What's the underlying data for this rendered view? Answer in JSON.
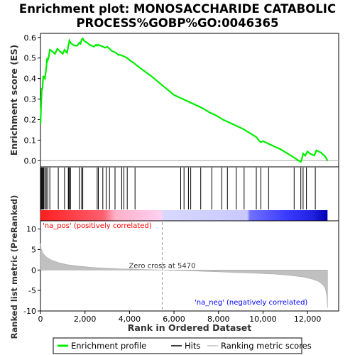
{
  "chart_data": {
    "type": "line",
    "title_line1": "Enrichment plot: MONOSACCHARIDE CATABOLIC",
    "title_line2": "PROCESS%GOBP%GO:0046365",
    "top_panel": {
      "ylabel": "Enrichment score (ES)",
      "ylim": [
        -0.03,
        0.62
      ],
      "yticks": [
        0.0,
        0.1,
        0.2,
        0.3,
        0.4,
        0.5,
        0.6
      ],
      "ytick_labels": [
        "0.0",
        "0.1",
        "0.2",
        "0.3",
        "0.4",
        "0.5",
        "0.6"
      ],
      "series_name": "Enrichment profile",
      "line_color": "#00ee00",
      "x": [
        0,
        30,
        60,
        90,
        120,
        150,
        200,
        260,
        300,
        330,
        380,
        420,
        500,
        650,
        760,
        800,
        850,
        900,
        1000,
        1080,
        1150,
        1200,
        1250,
        1280,
        1300,
        1350,
        1450,
        1550,
        1650,
        1750,
        1800,
        1850,
        1900,
        1950,
        2000,
        2100,
        2200,
        2300,
        2400,
        2500,
        2550,
        2600,
        2700,
        2800,
        2900,
        3000,
        3100,
        3200,
        3300,
        3400,
        3500,
        3600,
        3700,
        3800,
        3900,
        4000,
        4200,
        4500,
        5000,
        5500,
        6000,
        6300,
        6500,
        6800,
        7000,
        7300,
        7600,
        7900,
        8200,
        8500,
        8800,
        9100,
        9400,
        9700,
        9800,
        9900,
        10000,
        10200,
        10300,
        10500,
        10800,
        11100,
        11400,
        11600,
        11700,
        11750,
        11800,
        11900,
        12000,
        12100,
        12200,
        12300,
        12400,
        12600,
        12800,
        12900
      ],
      "y": [
        0.18,
        0.27,
        0.35,
        0.35,
        0.41,
        0.41,
        0.4,
        0.45,
        0.5,
        0.49,
        0.51,
        0.54,
        0.535,
        0.52,
        0.545,
        0.54,
        0.535,
        0.53,
        0.52,
        0.54,
        0.53,
        0.525,
        0.56,
        0.57,
        0.585,
        0.575,
        0.565,
        0.56,
        0.56,
        0.575,
        0.57,
        0.59,
        0.595,
        0.585,
        0.58,
        0.575,
        0.565,
        0.56,
        0.555,
        0.565,
        0.56,
        0.565,
        0.56,
        0.555,
        0.55,
        0.555,
        0.545,
        0.535,
        0.53,
        0.525,
        0.515,
        0.515,
        0.51,
        0.505,
        0.5,
        0.49,
        0.475,
        0.45,
        0.41,
        0.365,
        0.32,
        0.305,
        0.295,
        0.28,
        0.27,
        0.255,
        0.235,
        0.22,
        0.2,
        0.185,
        0.17,
        0.155,
        0.135,
        0.115,
        0.1,
        0.09,
        0.095,
        0.085,
        0.08,
        0.07,
        0.055,
        0.035,
        0.015,
        0.0,
        -0.005,
        0.01,
        0.035,
        0.025,
        0.045,
        0.035,
        0.03,
        0.025,
        0.05,
        0.04,
        0.02,
        0.0
      ]
    },
    "hits": [
      30,
      60,
      90,
      120,
      150,
      200,
      260,
      330,
      420,
      800,
      1080,
      1250,
      1280,
      1300,
      1350,
      1750,
      1850,
      1900,
      2550,
      2600,
      2800,
      2950,
      3100,
      3350,
      3650,
      3750,
      3900,
      4250,
      6300,
      6450,
      6650,
      6750,
      7200,
      7700,
      8150,
      8400,
      8800,
      9150,
      9700,
      9900,
      10250,
      11400,
      11700,
      11800,
      11950,
      12350
    ],
    "hits_label": "Hits",
    "ranked_panel": {
      "ylabel": "Ranked list metric (PreRanked)",
      "ylim": [
        -10,
        12
      ],
      "yticks": [
        -10,
        -5,
        0,
        5,
        10
      ],
      "ytick_labels": [
        "-10",
        "-5",
        "0",
        "5",
        "10"
      ],
      "series_name": "Ranking metric scores",
      "x": [
        0,
        40,
        100,
        200,
        300,
        500,
        800,
        1200,
        1800,
        2500,
        3500,
        4500,
        5470,
        6500,
        7500,
        8500,
        9500,
        10500,
        11200,
        11800,
        12200,
        12500,
        12700,
        12800,
        12870,
        12900
      ],
      "y": [
        6.5,
        5.0,
        4.2,
        3.5,
        3.0,
        2.4,
        1.8,
        1.3,
        0.9,
        0.55,
        0.3,
        0.12,
        0.0,
        -0.15,
        -0.35,
        -0.55,
        -0.75,
        -1.0,
        -1.3,
        -1.7,
        -2.2,
        -2.8,
        -3.6,
        -4.5,
        -6.5,
        -9.2
      ],
      "pos_label": "'na_pos' (positively correlated)",
      "neg_label": "'na_neg' (negatively correlated)",
      "zero_cross_label": "Zero cross at 5470",
      "zero_cross": 5470
    },
    "xlabel": "Rank in Ordered Dataset",
    "xlim": [
      0,
      13400
    ],
    "xticks": [
      0,
      2000,
      4000,
      6000,
      8000,
      10000,
      12000
    ],
    "xtick_labels": [
      "0",
      "2,000",
      "4,000",
      "6,000",
      "8,000",
      "10,000",
      "12,000"
    ],
    "n_genes": 12900,
    "legend": {
      "placement": "bottom",
      "entries": [
        "Enrichment profile",
        "Hits",
        "Ranking metric scores"
      ]
    },
    "colors": {
      "enrichment": "#00ee00",
      "hits": "#000000",
      "ranking": "#c0c0c0",
      "pos_label": "#ff0000",
      "neg_label": "#0000ff",
      "gradient": [
        "#ff0000",
        "#ff9aa0",
        "#ffe0f0",
        "#e0e0ff",
        "#6060ff",
        "#0000cc"
      ]
    }
  }
}
